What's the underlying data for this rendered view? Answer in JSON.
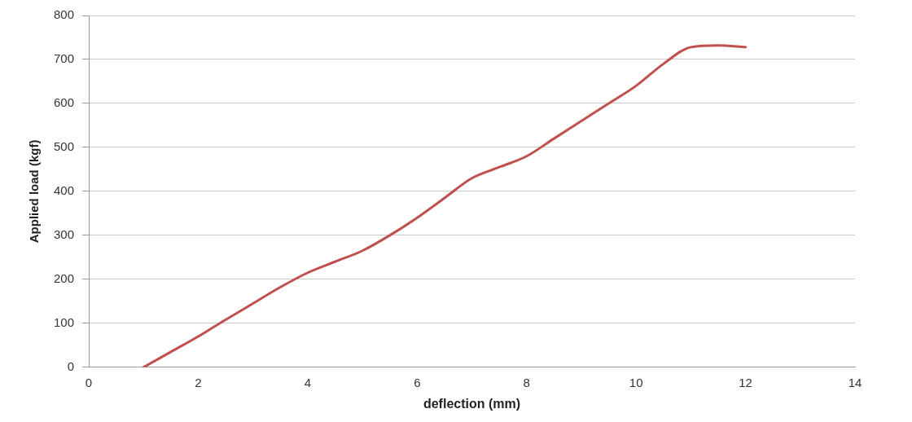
{
  "chart_data": {
    "type": "line",
    "xlabel": "deflection (mm)",
    "ylabel": "Applied load (kgf)",
    "x": [
      1,
      1.5,
      2,
      2.5,
      3,
      3.5,
      4,
      4.5,
      5,
      5.5,
      6,
      6.5,
      7,
      7.5,
      8,
      8.5,
      9,
      9.5,
      10,
      10.5,
      11,
      11.5,
      12
    ],
    "series": [
      {
        "color": "#c0504d",
        "values": [
          0,
          35,
          70,
          108,
          145,
          182,
          215,
          240,
          265,
          300,
          340,
          385,
          430,
          455,
          480,
          520,
          560,
          600,
          640,
          690,
          728,
          732,
          728
        ]
      }
    ],
    "xlim": [
      0,
      14
    ],
    "xticks": [
      0,
      2,
      4,
      6,
      8,
      10,
      12,
      14
    ],
    "ylim": [
      0,
      800
    ],
    "yticks": [
      0,
      100,
      200,
      300,
      400,
      500,
      600,
      700,
      800
    ],
    "grid": "y",
    "marker": "none",
    "line_style": "solid",
    "legend": false
  }
}
